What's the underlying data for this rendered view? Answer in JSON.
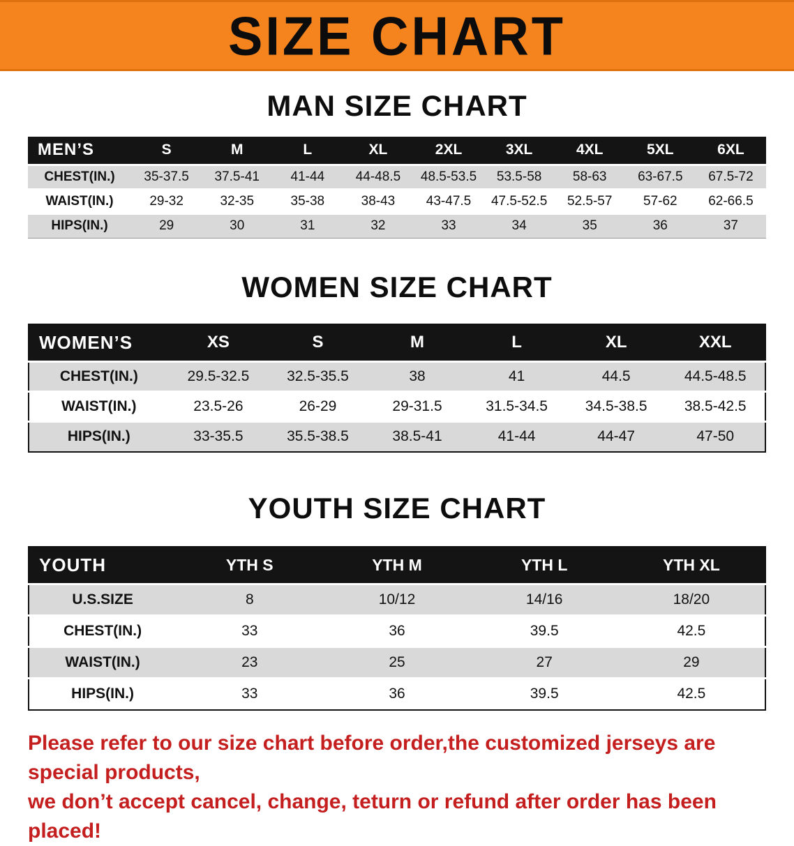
{
  "banner": {
    "title": "SIZE CHART"
  },
  "colors": {
    "banner_bg": "#f5841f",
    "table_header_bg": "#141414",
    "row_gray": "#d9d9d9",
    "footer_red": "#c41e1e"
  },
  "sections": [
    {
      "title": "MAN SIZE CHART",
      "table": {
        "header": [
          "MEN’S",
          "S",
          "M",
          "L",
          "XL",
          "2XL",
          "3XL",
          "4XL",
          "5XL",
          "6XL"
        ],
        "rows": [
          [
            "CHEST(IN.)",
            "35-37.5",
            "37.5-41",
            "41-44",
            "44-48.5",
            "48.5-53.5",
            "53.5-58",
            "58-63",
            "63-67.5",
            "67.5-72"
          ],
          [
            "WAIST(IN.)",
            "29-32",
            "32-35",
            "35-38",
            "38-43",
            "43-47.5",
            "47.5-52.5",
            "52.5-57",
            "57-62",
            "62-66.5"
          ],
          [
            "HIPS(IN.)",
            "29",
            "30",
            "31",
            "32",
            "33",
            "34",
            "35",
            "36",
            "37"
          ]
        ]
      }
    },
    {
      "title": "WOMEN SIZE CHART",
      "table": {
        "header": [
          "WOMEN’S",
          "XS",
          "S",
          "M",
          "L",
          "XL",
          "XXL"
        ],
        "rows": [
          [
            "CHEST(IN.)",
            "29.5-32.5",
            "32.5-35.5",
            "38",
            "41",
            "44.5",
            "44.5-48.5"
          ],
          [
            "WAIST(IN.)",
            "23.5-26",
            "26-29",
            "29-31.5",
            "31.5-34.5",
            "34.5-38.5",
            "38.5-42.5"
          ],
          [
            "HIPS(IN.)",
            "33-35.5",
            "35.5-38.5",
            "38.5-41",
            "41-44",
            "44-47",
            "47-50"
          ]
        ]
      }
    },
    {
      "title": "YOUTH SIZE CHART",
      "table": {
        "header": [
          "YOUTH",
          "YTH S",
          "YTH M",
          "YTH L",
          "YTH XL"
        ],
        "rows": [
          [
            "U.S.SIZE",
            "8",
            "10/12",
            "14/16",
            "18/20"
          ],
          [
            "CHEST(IN.)",
            "33",
            "36",
            "39.5",
            "42.5"
          ],
          [
            "WAIST(IN.)",
            "23",
            "25",
            "27",
            "29"
          ],
          [
            "HIPS(IN.)",
            "33",
            "36",
            "39.5",
            "42.5"
          ]
        ]
      }
    }
  ],
  "footer": {
    "line1": "Please refer to our size chart before order,the customized jerseys are special products,",
    "line2": "we don’t accept cancel, change, teturn or refund after order has been placed!"
  }
}
